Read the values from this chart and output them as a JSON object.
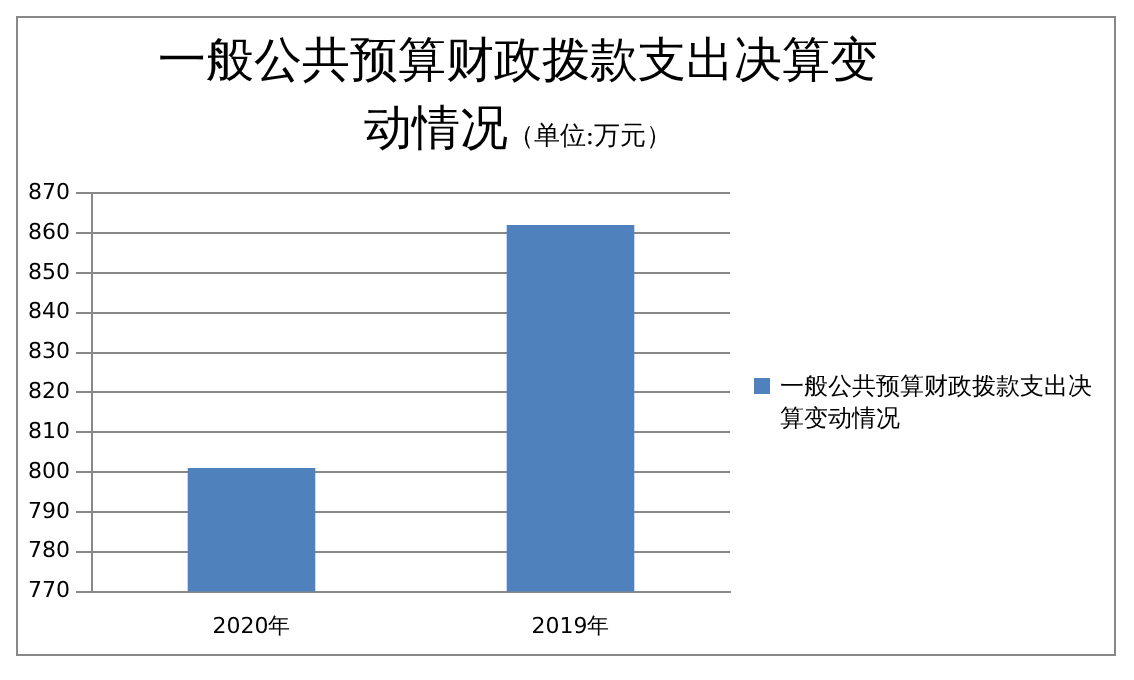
{
  "chart_data": {
    "type": "bar",
    "title": "一般公共预算财政拨款支出决算变动情况",
    "subtitle": "（单位:万元）",
    "categories": [
      "2020年",
      "2019年"
    ],
    "series": [
      {
        "name": "一般公共预算财政拨款支出决算变动情况",
        "color": "#4f81bd",
        "values": [
          801,
          862
        ]
      }
    ],
    "ylim": [
      770,
      870
    ],
    "yticks": [
      770,
      780,
      790,
      800,
      810,
      820,
      830,
      840,
      850,
      860,
      870
    ],
    "grid": "y",
    "legend": "right"
  }
}
